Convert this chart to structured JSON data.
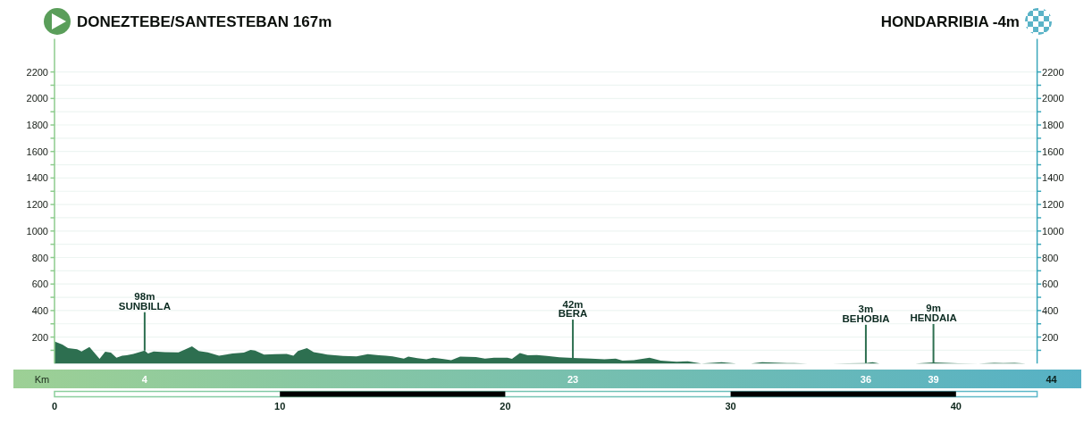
{
  "chart_data": {
    "type": "area",
    "title": "DONEZTEBE/SANTESTEBAN 167m",
    "subtitle": "HONDARRIBIA -4m",
    "x2label": "Km",
    "color": "#2d6f50",
    "x": [
      0,
      0.35,
      0.6,
      1.0,
      1.2,
      1.55,
      2.0,
      2.25,
      2.5,
      2.75,
      3.0,
      3.2,
      3.5,
      4.0,
      4.15,
      4.4,
      4.9,
      5.5,
      5.75,
      6.1,
      6.4,
      6.8,
      7.3,
      7.9,
      8.4,
      8.7,
      8.9,
      9.3,
      9.8,
      10.3,
      10.6,
      10.8,
      11.2,
      11.5,
      11.85,
      12.1,
      12.8,
      13.4,
      13.9,
      14.4,
      14.7,
      15.0,
      15.5,
      15.7,
      16.1,
      16.5,
      16.8,
      17.2,
      17.6,
      18.0,
      18.7,
      19.1,
      19.5,
      20.1,
      20.3,
      20.65,
      21.0,
      21.4,
      21.85,
      22.4,
      23.0,
      23.8,
      24.4,
      24.9,
      25.2,
      25.7,
      26.4,
      26.9,
      27.6,
      28.1,
      28.7,
      29.6,
      30.25,
      30.9,
      31.4,
      32.5,
      32.8,
      33.4,
      34.5,
      35.2,
      36.0,
      36.3,
      36.6,
      37.4,
      38.2,
      39.0,
      40.1,
      41.0,
      41.7,
      42.1,
      42.6,
      43.1,
      43.6
    ],
    "values": [
      167,
      144,
      117,
      108,
      92,
      125,
      36,
      90,
      82,
      44,
      60,
      63,
      73,
      98,
      76,
      92,
      87,
      84,
      103,
      130,
      95,
      84,
      60,
      76,
      82,
      103,
      98,
      68,
      71,
      73,
      60,
      95,
      117,
      87,
      76,
      68,
      57,
      55,
      71,
      63,
      60,
      55,
      38,
      52,
      41,
      33,
      44,
      36,
      25,
      52,
      49,
      38,
      44,
      44,
      36,
      79,
      63,
      65,
      57,
      47,
      42,
      38,
      33,
      38,
      22,
      25,
      44,
      22,
      14,
      17,
      0,
      11,
      0,
      1,
      11,
      3,
      3,
      0,
      0,
      2,
      3,
      11,
      0,
      1,
      1,
      9,
      2,
      1,
      6,
      4,
      6,
      1,
      0
    ],
    "xlim": [
      0,
      43.6
    ],
    "xticks": [
      0,
      10,
      20,
      30,
      40
    ],
    "x2lim": [
      0,
      43.6
    ],
    "x2ticks": [
      4,
      23,
      36,
      39
    ],
    "ylim": [
      0,
      2450
    ],
    "yticks": [
      {
        "value": 100,
        "label": null
      },
      200,
      {
        "value": 300,
        "label": null
      },
      400,
      {
        "value": 500,
        "label": null
      },
      600,
      {
        "value": 700,
        "label": null
      },
      800,
      {
        "value": 900,
        "label": null
      },
      1000,
      {
        "value": 1100,
        "label": null
      },
      1200,
      {
        "value": 1300,
        "label": null
      },
      1400,
      {
        "value": 1500,
        "label": null
      },
      1600,
      {
        "value": 1700,
        "label": null
      },
      1800,
      {
        "value": 1900,
        "label": null
      },
      2000,
      {
        "value": 2100,
        "label": null
      },
      2200
    ],
    "y2lim": [
      0,
      2450
    ],
    "y2ticks": [
      {
        "value": 100,
        "label": null
      },
      200,
      {
        "value": 300,
        "label": null
      },
      400,
      {
        "value": 500,
        "label": null
      },
      600,
      {
        "value": 700,
        "label": null
      },
      800,
      {
        "value": 900,
        "label": null
      },
      1000,
      {
        "value": 1100,
        "label": null
      },
      1200,
      {
        "value": 1300,
        "label": null
      },
      1400,
      {
        "value": 1500,
        "label": null
      },
      1600,
      {
        "value": 1700,
        "label": null
      },
      1800,
      {
        "value": 1900,
        "label": null
      },
      2000,
      {
        "value": 2100,
        "label": null
      },
      2200
    ],
    "grid": "y",
    "annotations": [
      {
        "text": "98m\nSUNBILLA",
        "x": 4,
        "y": 98
      },
      {
        "text": "42m\nBERA",
        "x": 23,
        "y": 42
      },
      {
        "text": "3m\nBEHOBIA",
        "x": 36,
        "y": 3
      },
      {
        "text": "9m\nHENDAIA",
        "x": 39,
        "y": 9
      },
      "44"
    ]
  }
}
